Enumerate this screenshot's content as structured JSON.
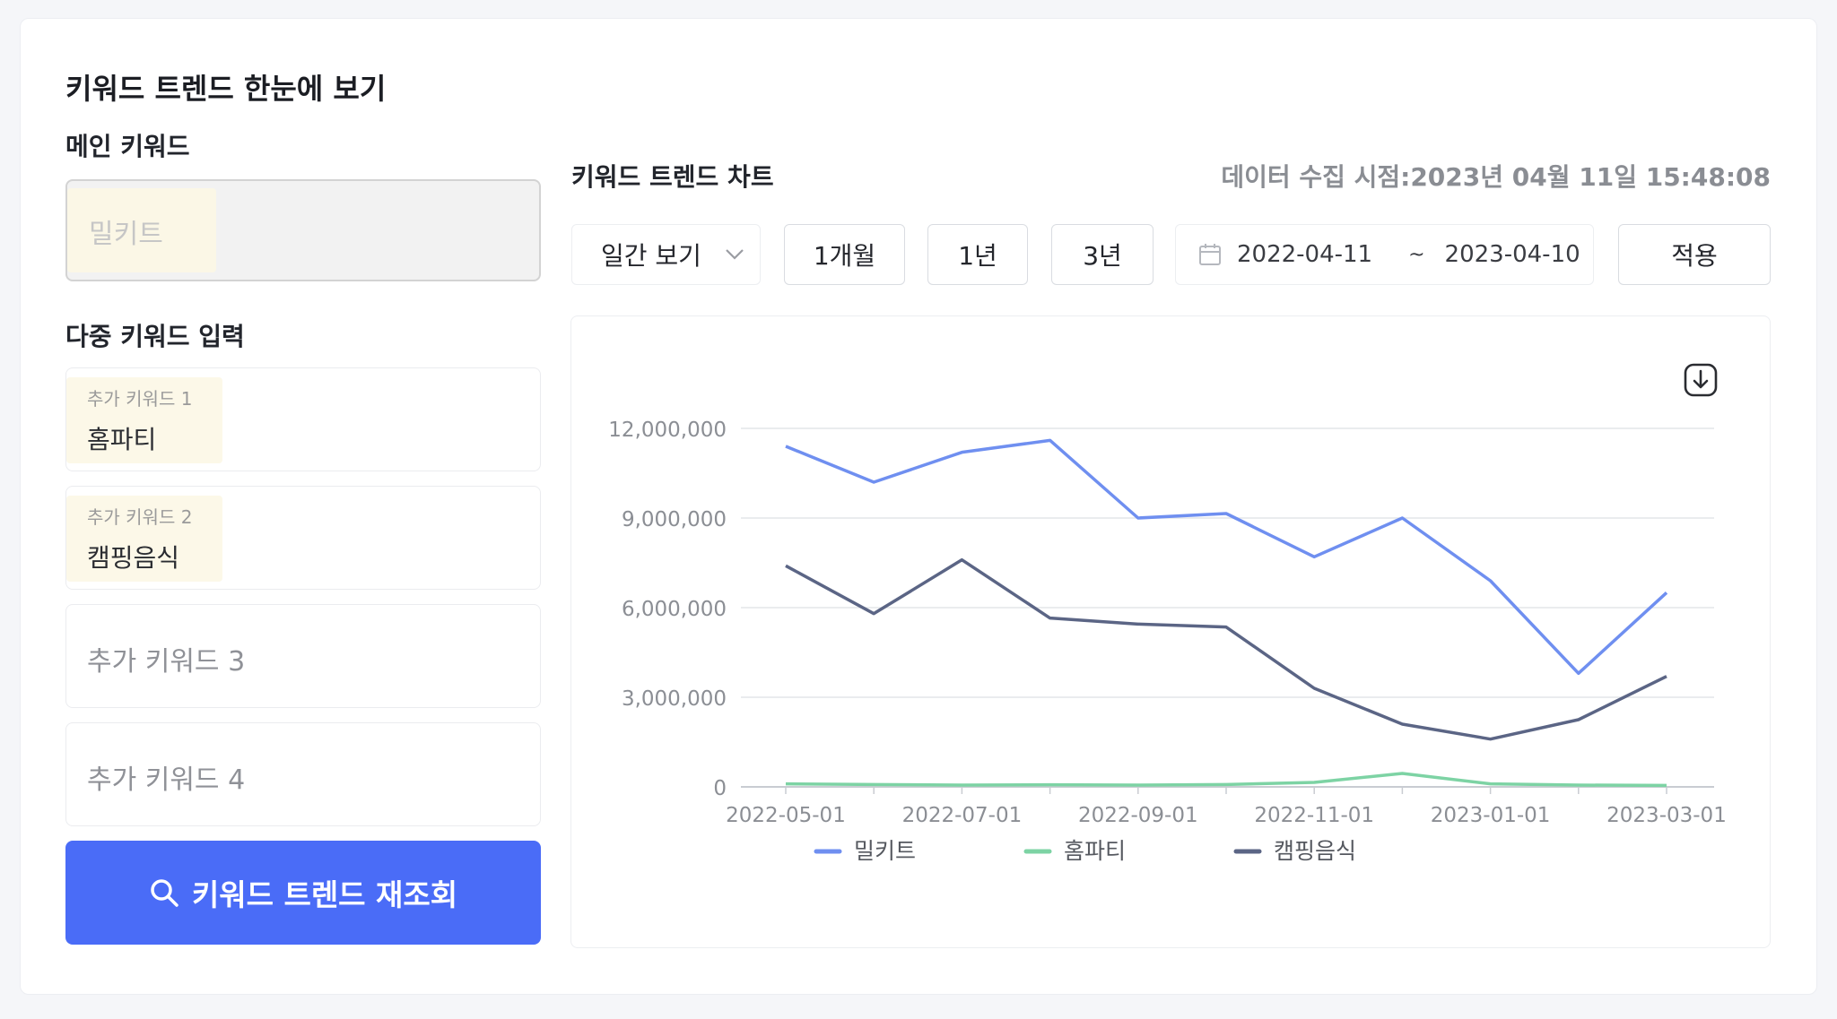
{
  "page_title": "키워드 트렌드 한눈에 보기",
  "main_keyword": {
    "label": "메인 키워드",
    "value": "밀키트"
  },
  "multi_keyword": {
    "label": "다중 키워드 입력",
    "items": [
      {
        "label": "추가 키워드 1",
        "value": "홈파티"
      },
      {
        "label": "추가 키워드 2",
        "value": "캠핑음식"
      },
      {
        "placeholder": "추가 키워드 3"
      },
      {
        "placeholder": "추가 키워드 4"
      }
    ]
  },
  "search_button": "키워드 트렌드 재조회",
  "chart_section": {
    "title": "키워드 트렌드 차트",
    "collected_at": "데이터 수집 시점:2023년 04월 11일 15:48:08"
  },
  "controls": {
    "view_select": "일간 보기",
    "period_buttons": [
      "1개월",
      "1년",
      "3년"
    ],
    "date_from": "2022-04-11",
    "date_sep": "~",
    "date_to": "2023-04-10",
    "apply": "적용"
  },
  "icons": {
    "download": "download-icon",
    "calendar": "calendar-icon",
    "search": "search-icon",
    "chevron": "chevron-down-icon"
  },
  "colors": {
    "primary": "#4a6cf7",
    "series_milkit": "#6f8ff0",
    "series_homeparty": "#7dd3a4",
    "series_camping": "#5b6585"
  },
  "chart_data": {
    "type": "line",
    "x": [
      "2022-05-01",
      "2022-06-01",
      "2022-07-01",
      "2022-08-01",
      "2022-09-01",
      "2022-10-01",
      "2022-11-01",
      "2022-12-01",
      "2023-01-01",
      "2023-02-01",
      "2023-03-01"
    ],
    "x_tick_labels": [
      "2022-05-01",
      "2022-07-01",
      "2022-09-01",
      "2022-11-01",
      "2023-01-01",
      "2023-03-01"
    ],
    "y_ticks": [
      "0",
      "3,000,000",
      "6,000,000",
      "9,000,000",
      "12,000,000"
    ],
    "ylim": [
      0,
      12000000
    ],
    "grid": true,
    "legend_position": "bottom",
    "series": [
      {
        "name": "밀키트",
        "values": [
          11400000,
          10200000,
          11200000,
          11600000,
          9000000,
          9150000,
          7700000,
          9000000,
          6900000,
          3800000,
          6500000
        ]
      },
      {
        "name": "홈파티",
        "values": [
          100000,
          80000,
          60000,
          70000,
          60000,
          80000,
          150000,
          450000,
          100000,
          60000,
          50000
        ]
      },
      {
        "name": "캠핑음식",
        "values": [
          7400000,
          5800000,
          7600000,
          5650000,
          5450000,
          5350000,
          3300000,
          2100000,
          1600000,
          2250000,
          3700000
        ]
      }
    ]
  }
}
